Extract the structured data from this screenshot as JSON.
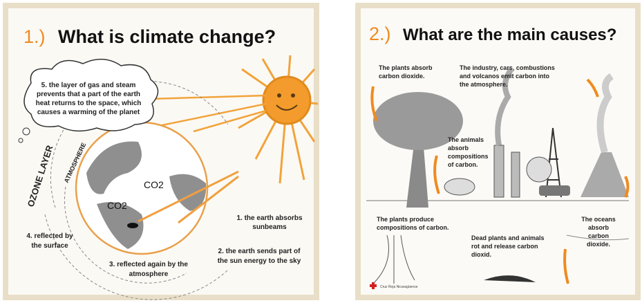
{
  "panels": [
    {
      "number": "1.)",
      "title": "What is climate change?",
      "cloud": [
        "5. the layer of gas and steam",
        "prevents that a part of the earth",
        "heat returns to the space, which",
        "causes a warming of the planet",
        ""
      ],
      "ozone": "OZONE LAYER",
      "atmosphere": "ATMOSPHERE",
      "co2": [
        "CO2",
        "CO2"
      ],
      "steps": [
        [
          "1. the earth absorbs",
          "sunbeams"
        ],
        [
          "2. the earth sends part of",
          "the sun energy to the sky"
        ],
        [
          "3. reflected again by the",
          "atmosphere"
        ],
        [
          "4. reflected by",
          "the surface"
        ]
      ]
    },
    {
      "number": "2.)",
      "title": "What are the main causes?",
      "notes": [
        [
          "The plants absorb",
          "carbon dioxide."
        ],
        [
          "The industry, cars, combustions",
          "and volcanos emit carbon into",
          "the atmosphere."
        ],
        [
          "The animals",
          "absorb",
          "compositions",
          "of carbon."
        ],
        [
          "The plants produce",
          "compositions of carbon."
        ],
        [
          "Dead plants and animals",
          "rot and release carbon",
          "dioxid."
        ],
        [
          "The oceans",
          "absorb",
          "carbon",
          "dioxide."
        ]
      ],
      "credit": "Cruz Roja Nicaragüense"
    }
  ]
}
